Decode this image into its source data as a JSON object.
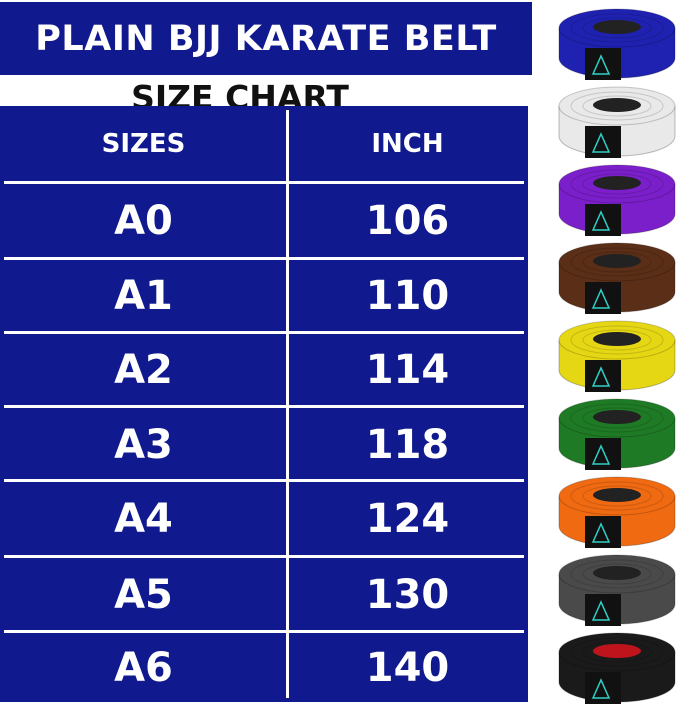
{
  "title": "PLAIN BJJ KARATE BELT",
  "subtitle": "SIZE CHART",
  "table": {
    "headers": [
      "SIZES",
      "INCH"
    ],
    "rows": [
      {
        "size": "A0",
        "inch": "106"
      },
      {
        "size": "A1",
        "inch": "110"
      },
      {
        "size": "A2",
        "inch": "114"
      },
      {
        "size": "A3",
        "inch": "118"
      },
      {
        "size": "A4",
        "inch": "124"
      },
      {
        "size": "A5",
        "inch": "130"
      },
      {
        "size": "A6",
        "inch": "140"
      }
    ]
  },
  "colors": {
    "table_bg": "#101a8e",
    "text": "#ffffff"
  },
  "belts": [
    {
      "color": "blue",
      "hex": "#1f22b0",
      "core": "#222222"
    },
    {
      "color": "white",
      "hex": "#e9e9e9",
      "core": "#222222"
    },
    {
      "color": "purple",
      "hex": "#7a1fc9",
      "core": "#222222"
    },
    {
      "color": "brown",
      "hex": "#5a2e17",
      "core": "#222222"
    },
    {
      "color": "yellow",
      "hex": "#e6d714",
      "core": "#222222"
    },
    {
      "color": "green",
      "hex": "#1f7a25",
      "core": "#222222"
    },
    {
      "color": "orange",
      "hex": "#f06a12",
      "core": "#222222"
    },
    {
      "color": "gray",
      "hex": "#4a4a4a",
      "core": "#222222"
    },
    {
      "color": "black",
      "hex": "#1a1a1a",
      "core": "#c0141c"
    }
  ]
}
